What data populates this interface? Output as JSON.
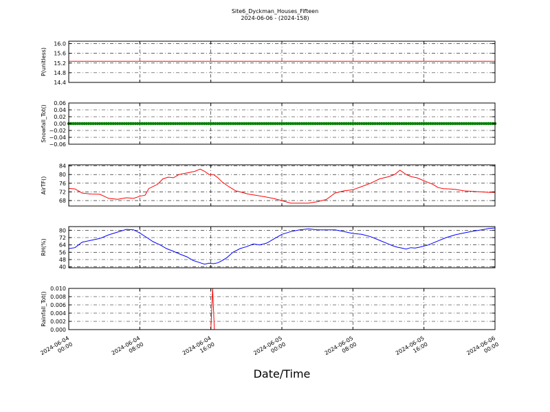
{
  "figure": {
    "title": "Site6_Dyckman_Houses_Fifteen",
    "subtitle": "2024-06-06 - (2024-158)",
    "xlabel": "Date/Time",
    "x_tick_labels": [
      [
        "2024-06-04",
        "00:00"
      ],
      [
        "2024-06-04",
        "08:00"
      ],
      [
        "2024-06-04",
        "16:00"
      ],
      [
        "2024-06-05",
        "00:00"
      ],
      [
        "2024-06-05",
        "08:00"
      ],
      [
        "2024-06-05",
        "16:00"
      ],
      [
        "2024-06-06",
        "00:00"
      ]
    ]
  },
  "chart_data": [
    {
      "type": "line",
      "ylabel": "P(unitless)",
      "color": "#ff0000",
      "ylim": [
        14.4,
        16.1
      ],
      "yticks": [
        14.4,
        14.8,
        15.2,
        15.6,
        16.0
      ],
      "ytick_labels": [
        "14.4",
        "14.8",
        "15.2",
        "15.6",
        "16.0"
      ],
      "x_hours": [
        0,
        48
      ],
      "values": [
        15.27,
        15.27
      ],
      "marker": false
    },
    {
      "type": "line",
      "ylabel": "Snowfall_Tot()",
      "color": "#008000",
      "ylim": [
        -0.06,
        0.06
      ],
      "yticks": [
        -0.06,
        -0.04,
        -0.02,
        0.0,
        0.02,
        0.04,
        0.06
      ],
      "ytick_labels": [
        "−0.06",
        "−0.04",
        "−0.02",
        "0.00",
        "0.02",
        "0.04",
        "0.06"
      ],
      "x_hours": [
        0,
        48
      ],
      "values": [
        0,
        0
      ],
      "marker": true
    },
    {
      "type": "line",
      "ylabel": "AirTF()",
      "color": "#ff0000",
      "ylim": [
        65.5,
        84.5
      ],
      "yticks": [
        68,
        72,
        76,
        80,
        84
      ],
      "ytick_labels": [
        "68",
        "72",
        "76",
        "80",
        "84"
      ],
      "x_hours": [
        0,
        0.7,
        1.5,
        2.5,
        3.5,
        4.5,
        5.5,
        6.5,
        7.3,
        8.0,
        8.6,
        9.0,
        9.5,
        10.0,
        10.6,
        11.2,
        11.8,
        12.4,
        13.0,
        13.6,
        14.2,
        14.8,
        15.3,
        15.8,
        16.3,
        16.8,
        17.3,
        18.0,
        18.8,
        19.5,
        20.2,
        21.0,
        22.0,
        23.0,
        24.0,
        25.0,
        26.0,
        27.0,
        28.0,
        29.0,
        30.0,
        31.0,
        32.0,
        33.0,
        34.0,
        35.0,
        36.0,
        36.7,
        37.3,
        38.0,
        38.6,
        39.2,
        39.8,
        40.4,
        41.0,
        41.6,
        42.2,
        42.8,
        43.5,
        44.5,
        45.5,
        46.5,
        47.3,
        48.0
      ],
      "values": [
        73.6,
        73.4,
        71.5,
        71.0,
        70.9,
        69.0,
        68.6,
        69.3,
        69.0,
        70.0,
        70.5,
        73.5,
        74.5,
        75.5,
        78.0,
        78.8,
        78.5,
        80.0,
        80.5,
        81.0,
        81.5,
        82.5,
        81.5,
        80.0,
        80.0,
        78.5,
        76.5,
        74.5,
        72.5,
        71.8,
        71.0,
        70.5,
        69.8,
        69.0,
        68.0,
        66.8,
        66.8,
        66.8,
        67.5,
        68.5,
        71.5,
        72.5,
        73.0,
        74.5,
        76.0,
        78.0,
        79.0,
        80.0,
        82.0,
        80.0,
        79.0,
        78.5,
        77.5,
        76.5,
        75.5,
        74.0,
        73.5,
        73.4,
        73.2,
        72.5,
        72.2,
        72.0,
        71.8,
        71.8
      ],
      "marker": false
    },
    {
      "type": "line",
      "ylabel": "RH(%)",
      "color": "#0000ff",
      "ylim": [
        39,
        84
      ],
      "yticks": [
        40,
        48,
        56,
        64,
        72,
        80
      ],
      "ytick_labels": [
        "40",
        "48",
        "56",
        "64",
        "72",
        "80"
      ],
      "x_hours": [
        0,
        0.7,
        1.5,
        2.5,
        3.5,
        4.5,
        5.5,
        6.5,
        7.3,
        8.0,
        8.8,
        9.5,
        10.3,
        11.0,
        11.8,
        12.5,
        13.3,
        14.0,
        14.8,
        15.3,
        15.8,
        16.3,
        16.8,
        17.3,
        17.8,
        18.5,
        19.3,
        20.0,
        20.8,
        21.5,
        22.3,
        23.0,
        24.0,
        25.0,
        26.0,
        27.0,
        28.0,
        29.0,
        30.0,
        31.0,
        32.0,
        33.0,
        34.0,
        35.0,
        36.0,
        36.5,
        37.0,
        37.5,
        38.0,
        38.5,
        39.0,
        39.5,
        40.5,
        41.5,
        42.5,
        43.5,
        44.5,
        45.5,
        46.5,
        47.3,
        48.0
      ],
      "values": [
        60.0,
        61.0,
        67.0,
        69.0,
        71.0,
        75.0,
        78.0,
        81.0,
        80.5,
        77.0,
        72.0,
        67.5,
        64.0,
        60.0,
        57.0,
        54.0,
        51.0,
        47.0,
        44.5,
        43.0,
        44.0,
        43.5,
        44.5,
        47.0,
        50.0,
        56.0,
        60.0,
        62.0,
        65.0,
        64.0,
        66.0,
        70.0,
        75.5,
        78.5,
        80.5,
        81.5,
        80.5,
        80.5,
        80.5,
        78.5,
        76.5,
        75.5,
        73.0,
        69.0,
        65.0,
        63.0,
        61.5,
        60.5,
        59.5,
        61.0,
        60.5,
        61.5,
        64.0,
        68.0,
        72.0,
        75.0,
        77.0,
        79.0,
        80.5,
        82.0,
        82.5
      ],
      "marker": false
    },
    {
      "type": "line",
      "ylabel": "Rainfall_Tot()",
      "color": "#ff0000",
      "ylim": [
        0,
        0.01
      ],
      "yticks": [
        0.0,
        0.002,
        0.004,
        0.006,
        0.008,
        0.01
      ],
      "ytick_labels": [
        "0.000",
        "0.002",
        "0.004",
        "0.006",
        "0.008",
        "0.010"
      ],
      "x_hours": [
        0,
        16.0,
        16.2,
        16.4,
        48
      ],
      "values": [
        0,
        0,
        0.01,
        0,
        0
      ],
      "marker": false
    }
  ]
}
